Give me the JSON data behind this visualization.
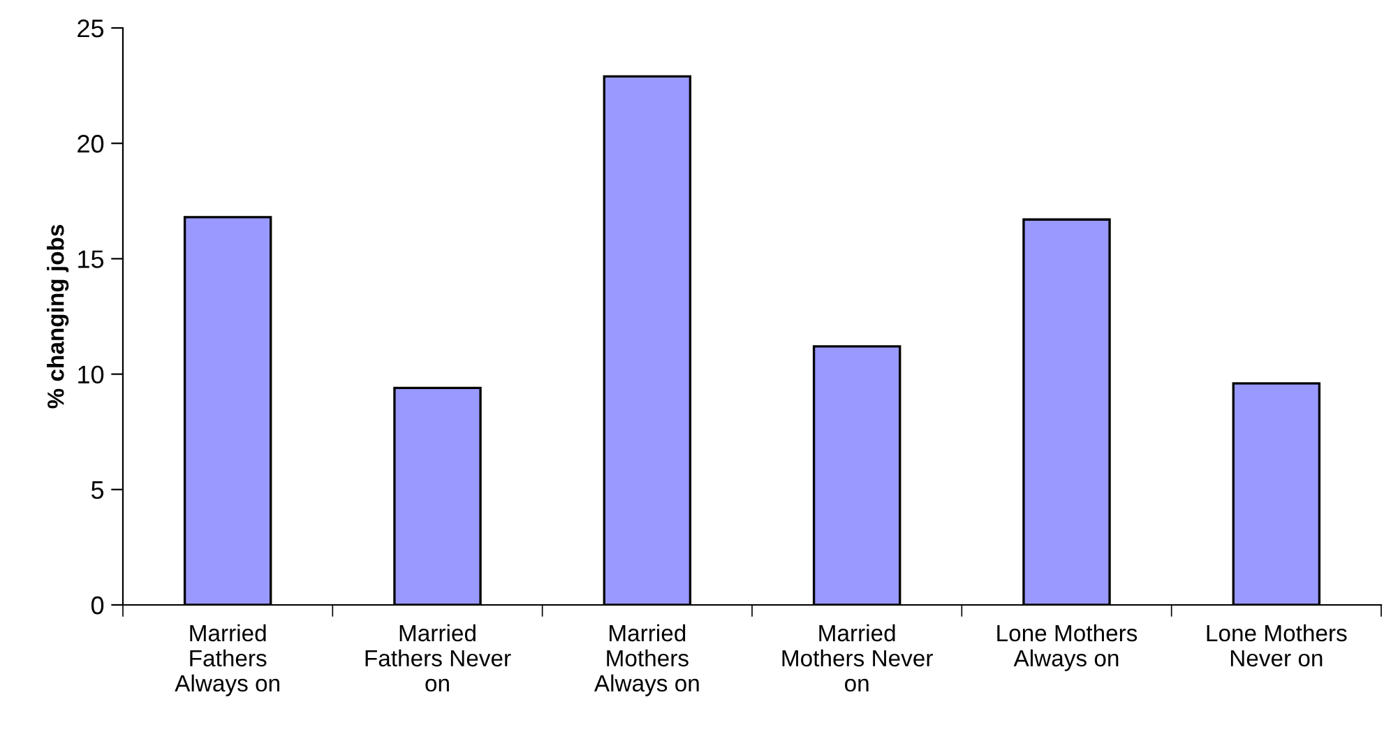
{
  "chart_data": {
    "type": "bar",
    "ylabel": "% changing jobs",
    "categories": [
      "Married\nFathers\nAlways on",
      "Married\nFathers Never\non",
      "Married\nMothers\nAlways on",
      "Married\nMothers Never\non",
      "Lone Mothers\nAlways on",
      "Lone Mothers\nNever on"
    ],
    "values": [
      16.8,
      9.4,
      22.9,
      11.2,
      16.7,
      9.6
    ],
    "color": "#9999ff",
    "ylim": [
      0,
      25
    ],
    "yticks": [
      0,
      5,
      10,
      15,
      20,
      25
    ],
    "grid": false,
    "legend": false
  }
}
